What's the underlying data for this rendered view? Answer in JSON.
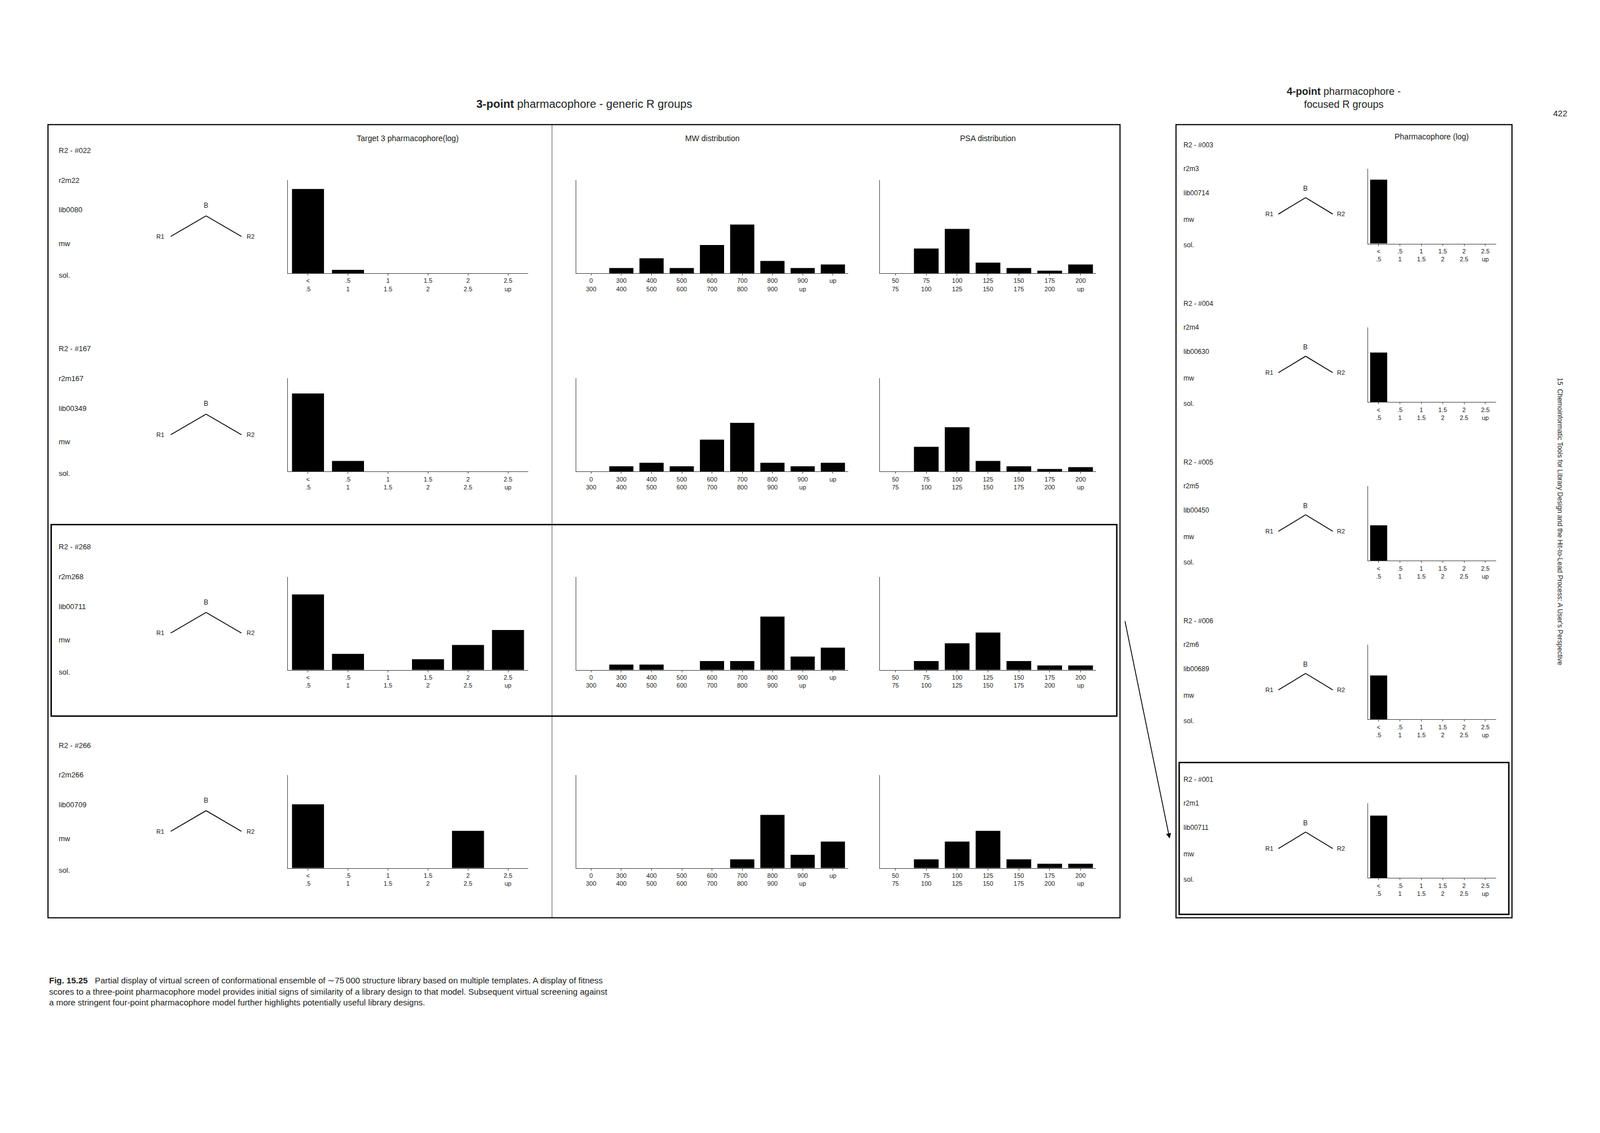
{
  "annotations": [
    "3-point pharmacophore - generic R groups",
    "4-point pharmacophore -\nfocused R groups",
    "Fig. 15.25",
    "Partial display of virtual screen of conformational ensemble of ∼75 000 structure library based on multiple templates. A display of fitness\nscores to a three-point pharmacophore model provides initial signs of similarity of a library design to that model. Subsequent virtual screening against\na more stringent four-point pharmacophore model further highlights potentially useful library designs.",
    "422",
    "15  Chemoinformatic Tools for Library Design and the Hit-to-Lead Process: A User's Perspective"
  ],
  "chart_data": [
    {
      "type": "bar",
      "title": "Target 3 pharmacophore(log)",
      "categories": [
        "<\n.5",
        ".5\n1",
        "1\n1.5",
        "1.5\n2",
        "2\n2.5",
        "2.5\nup"
      ],
      "values": [
        0.95,
        0.04,
        0.0,
        0.0,
        0.0,
        0.0
      ],
      "ylim": [
        0,
        1.05
      ],
      "tick_labels": "x",
      "color": "#000000",
      "annotations": [
        [
          "R2 - #022",
          "r2m22",
          "lib0080",
          "mw",
          "sol."
        ],
        [
          "B",
          "R1",
          "R2"
        ]
      ]
    },
    {
      "type": "bar",
      "title": "MW distribution",
      "categories": [
        "0\n300",
        "300\n400",
        "400\n500",
        "500\n600",
        "600\n700",
        "700\n800",
        "800\n900",
        "900\nup",
        "up"
      ],
      "values": [
        0.0,
        0.06,
        0.17,
        0.06,
        0.32,
        0.55,
        0.14,
        0.06,
        0.1
      ],
      "ylim": [
        0,
        1.05
      ],
      "tick_labels": "x",
      "color": "#000000"
    },
    {
      "type": "bar",
      "title": "PSA distribution",
      "categories": [
        "50\n75",
        "75\n100",
        "100\n125",
        "125\n150",
        "150\n175",
        "175\n200",
        "200\nup"
      ],
      "values": [
        0.0,
        0.28,
        0.5,
        0.12,
        0.06,
        0.03,
        0.1
      ],
      "ylim": [
        0,
        1.05
      ],
      "tick_labels": "x",
      "color": "#000000"
    },
    {
      "type": "bar",
      "categories": [
        "<\n.5",
        ".5\n1",
        "1\n1.5",
        "1.5\n2",
        "2\n2.5",
        "2.5\nup"
      ],
      "values": [
        0.88,
        0.12,
        0.0,
        0.0,
        0.0,
        0.0
      ],
      "ylim": [
        0,
        1.05
      ],
      "tick_labels": "x",
      "color": "#000000",
      "annotations": [
        [
          "R2 - #167",
          "r2m167",
          "lib00349",
          "mw",
          "sol."
        ],
        [
          "B",
          "R1",
          "R2"
        ]
      ]
    },
    {
      "type": "bar",
      "categories": [
        "0\n300",
        "300\n400",
        "400\n500",
        "500\n600",
        "600\n700",
        "700\n800",
        "800\n900",
        "900\nup",
        "up"
      ],
      "values": [
        0.0,
        0.06,
        0.1,
        0.06,
        0.36,
        0.55,
        0.1,
        0.06,
        0.1
      ],
      "ylim": [
        0,
        1.05
      ],
      "tick_labels": "x",
      "color": "#000000"
    },
    {
      "type": "bar",
      "categories": [
        "50\n75",
        "75\n100",
        "100\n125",
        "125\n150",
        "150\n175",
        "175\n200",
        "200\nup"
      ],
      "values": [
        0.0,
        0.28,
        0.5,
        0.12,
        0.06,
        0.03,
        0.05
      ],
      "ylim": [
        0,
        1.05
      ],
      "tick_labels": "x",
      "color": "#000000"
    },
    {
      "type": "bar",
      "categories": [
        "<\n.5",
        ".5\n1",
        "1\n1.5",
        "1.5\n2",
        "2\n2.5",
        "2.5\nup"
      ],
      "values": [
        0.85,
        0.18,
        0.0,
        0.12,
        0.28,
        0.45
      ],
      "ylim": [
        0,
        1.05
      ],
      "tick_labels": "x",
      "color": "#000000",
      "annotations": [
        [
          "R2 - #268",
          "r2m268",
          "lib00711",
          "mw",
          "sol."
        ],
        [
          "B",
          "R1",
          "R2"
        ]
      ]
    },
    {
      "type": "bar",
      "categories": [
        "0\n300",
        "300\n400",
        "400\n500",
        "500\n600",
        "600\n700",
        "700\n800",
        "800\n900",
        "900\nup",
        "up"
      ],
      "values": [
        0.0,
        0.06,
        0.06,
        0.0,
        0.1,
        0.1,
        0.6,
        0.15,
        0.25
      ],
      "ylim": [
        0,
        1.05
      ],
      "tick_labels": "x",
      "color": "#000000"
    },
    {
      "type": "bar",
      "categories": [
        "50\n75",
        "75\n100",
        "100\n125",
        "125\n150",
        "150\n175",
        "175\n200",
        "200\nup"
      ],
      "values": [
        0.0,
        0.1,
        0.3,
        0.42,
        0.1,
        0.05,
        0.05
      ],
      "ylim": [
        0,
        1.05
      ],
      "tick_labels": "x",
      "color": "#000000"
    },
    {
      "type": "bar",
      "categories": [
        "<\n.5",
        ".5\n1",
        "1\n1.5",
        "1.5\n2",
        "2\n2.5",
        "2.5\nup"
      ],
      "values": [
        0.72,
        0.0,
        0.0,
        0.0,
        0.42,
        0.0
      ],
      "ylim": [
        0,
        1.05
      ],
      "tick_labels": "x",
      "color": "#000000",
      "annotations": [
        [
          "R2 - #266",
          "r2m266",
          "lib00709",
          "mw",
          "sol."
        ],
        [
          "B",
          "R1",
          "R2"
        ]
      ]
    },
    {
      "type": "bar",
      "categories": [
        "0\n300",
        "300\n400",
        "400\n500",
        "500\n600",
        "600\n700",
        "700\n800",
        "800\n900",
        "900\nup",
        "up"
      ],
      "values": [
        0.0,
        0.0,
        0.0,
        0.0,
        0.0,
        0.1,
        0.6,
        0.15,
        0.3
      ],
      "ylim": [
        0,
        1.05
      ],
      "tick_labels": "x",
      "color": "#000000"
    },
    {
      "type": "bar",
      "categories": [
        "50\n75",
        "75\n100",
        "100\n125",
        "125\n150",
        "150\n175",
        "175\n200",
        "200\nup"
      ],
      "values": [
        0.0,
        0.1,
        0.3,
        0.42,
        0.1,
        0.05,
        0.05
      ],
      "ylim": [
        0,
        1.05
      ],
      "tick_labels": "x",
      "color": "#000000"
    },
    {
      "type": "bar",
      "title": "Pharmacophore (log)",
      "categories": [
        "<\n.5",
        ".5\n1",
        "1\n1.5",
        "1.5\n2",
        "2\n2.5",
        "2.5\nup"
      ],
      "values": [
        0.9,
        0.0,
        0.0,
        0.0,
        0.0,
        0.0
      ],
      "ylim": [
        0,
        1.05
      ],
      "tick_labels": "x",
      "color": "#000000",
      "annotations": [
        [
          "R2 - #003",
          "r2m3",
          "lib00714",
          "mw",
          "sol."
        ],
        [
          "B",
          "R1",
          "R2"
        ]
      ]
    },
    {
      "type": "bar",
      "categories": [
        "<\n.5",
        ".5\n1",
        "1\n1.5",
        "1.5\n2",
        "2\n2.5",
        "2.5\nup"
      ],
      "values": [
        0.7,
        0.0,
        0.0,
        0.0,
        0.0,
        0.0
      ],
      "ylim": [
        0,
        1.05
      ],
      "tick_labels": "x",
      "color": "#000000",
      "annotations": [
        [
          "R2 - #004",
          "r2m4",
          "lib00630",
          "mw",
          "sol."
        ],
        [
          "B",
          "R1",
          "R2"
        ]
      ]
    },
    {
      "type": "bar",
      "categories": [
        "<\n.5",
        ".5\n1",
        "1\n1.5",
        "1.5\n2",
        "2\n2.5",
        "2.5\nup"
      ],
      "values": [
        0.5,
        0.0,
        0.0,
        0.0,
        0.0,
        0.0
      ],
      "ylim": [
        0,
        1.05
      ],
      "tick_labels": "x",
      "color": "#000000",
      "annotations": [
        [
          "R2 - #005",
          "r2m5",
          "lib00450",
          "mw",
          "sol."
        ],
        [
          "B",
          "R1",
          "R2"
        ]
      ]
    },
    {
      "type": "bar",
      "categories": [
        "<\n.5",
        ".5\n1",
        "1\n1.5",
        "1.5\n2",
        "2\n2.5",
        "2.5\nup"
      ],
      "values": [
        0.62,
        0.0,
        0.0,
        0.0,
        0.0,
        0.0
      ],
      "ylim": [
        0,
        1.05
      ],
      "tick_labels": "x",
      "color": "#000000",
      "annotations": [
        [
          "R2 - #006",
          "r2m6",
          "lib00689",
          "mw",
          "sol."
        ],
        [
          "B",
          "R1",
          "R2"
        ]
      ]
    },
    {
      "type": "bar",
      "categories": [
        "<\n.5",
        ".5\n1",
        "1\n1.5",
        "1.5\n2",
        "2\n2.5",
        "2.5\nup"
      ],
      "values": [
        0.88,
        0.0,
        0.0,
        0.0,
        0.0,
        0.0
      ],
      "ylim": [
        0,
        1.05
      ],
      "tick_labels": "x",
      "color": "#000000",
      "annotations": [
        [
          "R2 - #001",
          "r2m1",
          "lib00711",
          "mw",
          "sol."
        ],
        [
          "B",
          "R1",
          "R2"
        ]
      ]
    }
  ]
}
